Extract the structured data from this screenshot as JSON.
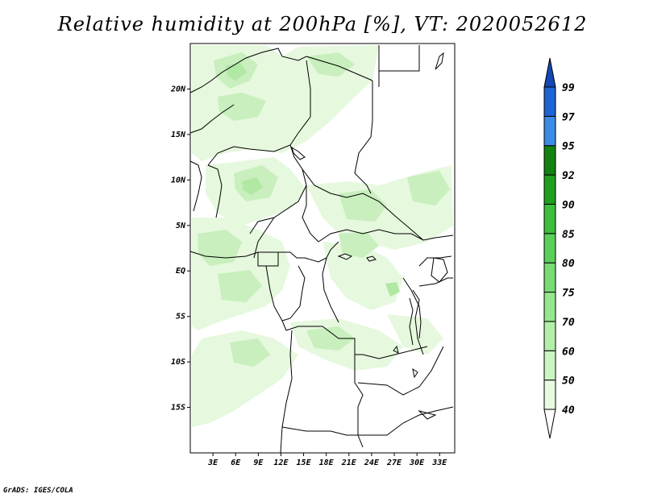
{
  "title": "Relative humidity at 200hPa [%], VT: 2020052612",
  "credit": "GrADS: IGES/COLA",
  "map": {
    "lon_range": [
      0,
      35
    ],
    "lat_range": [
      -20,
      25
    ],
    "x_ticks": [
      "3E",
      "6E",
      "9E",
      "12E",
      "15E",
      "18E",
      "21E",
      "24E",
      "27E",
      "30E",
      "33E"
    ],
    "y_ticks": [
      "20N",
      "15N",
      "10N",
      "5N",
      "EQ",
      "5S",
      "10S",
      "15S"
    ]
  },
  "colorbar": {
    "levels": [
      "40",
      "50",
      "60",
      "70",
      "75",
      "80",
      "85",
      "90",
      "92",
      "95",
      "97",
      "99"
    ],
    "colors": [
      "#ffffff",
      "#e6fbe0",
      "#ccf5c4",
      "#b4ef aa",
      "#96e68e",
      "#78dc72",
      "#5ad05a",
      "#3cbf3c",
      "#1ea01e",
      "#128212",
      "#3c8ce6",
      "#1e64d2",
      "#1446b4"
    ]
  }
}
